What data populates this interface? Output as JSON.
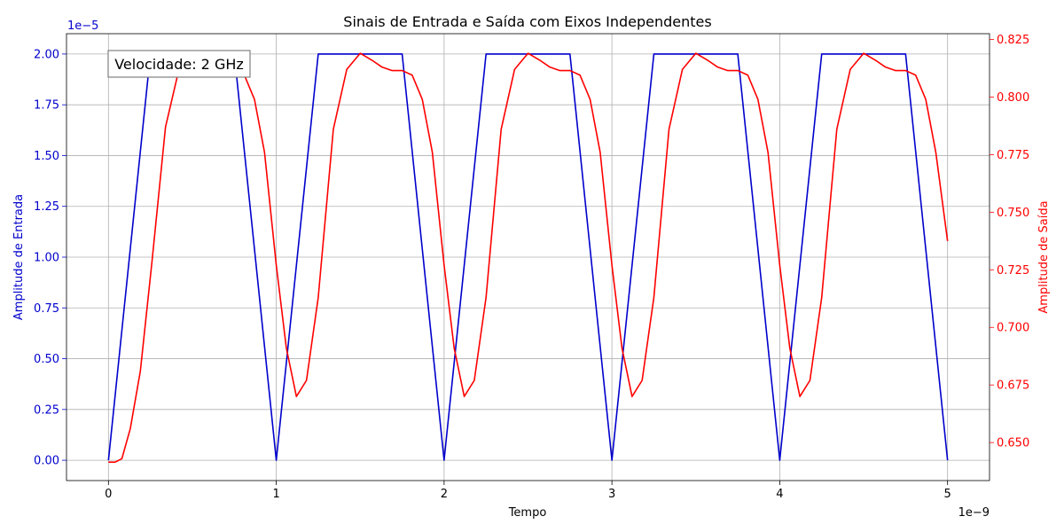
{
  "chart_data": {
    "type": "line",
    "title": "Sinais de Entrada e Saída com Eixos Independentes",
    "xlabel": "Tempo",
    "x_exponent": "1e−9",
    "x_tick_labels": [
      "0",
      "1",
      "2",
      "3",
      "4",
      "5"
    ],
    "xlim": [
      -0.25,
      5.25
    ],
    "grid": true,
    "annotation": "Velocidade: 2 GHz",
    "left_axis": {
      "label": "Amplitude de Entrada",
      "exponent": "1e−5",
      "color": "#0000cc",
      "ylim": [
        -0.1,
        2.1
      ],
      "ticks": [
        0.0,
        0.25,
        0.5,
        0.75,
        1.0,
        1.25,
        1.5,
        1.75,
        2.0
      ],
      "tick_labels": [
        "0.00",
        "0.25",
        "0.50",
        "0.75",
        "1.00",
        "1.25",
        "1.50",
        "1.75",
        "2.00"
      ]
    },
    "right_axis": {
      "label": "Amplitude de Saída",
      "color": "#ff0000",
      "ylim": [
        0.6335,
        0.8275
      ],
      "ticks": [
        0.65,
        0.675,
        0.7,
        0.725,
        0.75,
        0.775,
        0.8,
        0.825
      ],
      "tick_labels": [
        "0.650",
        "0.675",
        "0.700",
        "0.725",
        "0.750",
        "0.775",
        "0.800",
        "0.825"
      ]
    },
    "series": [
      {
        "axis": "left",
        "color": "#0000cc",
        "x": [
          0,
          0.25,
          0.75,
          1.0,
          1.25,
          1.75,
          2.0,
          2.25,
          2.75,
          3.0,
          3.25,
          3.75,
          4.0,
          4.25,
          4.75,
          5.0
        ],
        "y": [
          0,
          2.0,
          2.0,
          0,
          2.0,
          2.0,
          0,
          2.0,
          2.0,
          0,
          2.0,
          2.0,
          0,
          2.0,
          2.0,
          0
        ]
      },
      {
        "axis": "right",
        "color": "#ff0000",
        "x": [
          0,
          0.04,
          0.08,
          0.13,
          0.19,
          0.26,
          0.34,
          0.42,
          0.5,
          0.57,
          0.63,
          0.69,
          0.75,
          0.81,
          0.87,
          0.93,
          1.0,
          1.06,
          1.12,
          1.18,
          1.25,
          1.34,
          1.42,
          1.5,
          1.57,
          1.63,
          1.69,
          1.75,
          1.81,
          1.87,
          1.93,
          2.0,
          2.06,
          2.12,
          2.18,
          2.25,
          2.34,
          2.42,
          2.5,
          2.57,
          2.63,
          2.69,
          2.75,
          2.81,
          2.87,
          2.93,
          3.0,
          3.06,
          3.12,
          3.18,
          3.25,
          3.34,
          3.42,
          3.5,
          3.57,
          3.63,
          3.69,
          3.75,
          3.81,
          3.87,
          3.93,
          4.0,
          4.06,
          4.12,
          4.18,
          4.25,
          4.34,
          4.42,
          4.5,
          4.57,
          4.63,
          4.69,
          4.75,
          4.81,
          4.87,
          4.93,
          5.0
        ],
        "y": [
          0.6415,
          0.6415,
          0.643,
          0.656,
          0.681,
          0.729,
          0.787,
          0.812,
          0.819,
          0.816,
          0.813,
          0.8115,
          0.8115,
          0.8095,
          0.799,
          0.776,
          0.727,
          0.691,
          0.67,
          0.677,
          0.713,
          0.786,
          0.812,
          0.819,
          0.816,
          0.813,
          0.8115,
          0.8115,
          0.8095,
          0.799,
          0.776,
          0.727,
          0.691,
          0.67,
          0.677,
          0.713,
          0.786,
          0.812,
          0.819,
          0.816,
          0.813,
          0.8115,
          0.8115,
          0.8095,
          0.799,
          0.776,
          0.727,
          0.691,
          0.67,
          0.677,
          0.713,
          0.786,
          0.812,
          0.819,
          0.816,
          0.813,
          0.8115,
          0.8115,
          0.8095,
          0.799,
          0.776,
          0.727,
          0.691,
          0.67,
          0.677,
          0.713,
          0.786,
          0.812,
          0.819,
          0.816,
          0.813,
          0.8115,
          0.8115,
          0.8095,
          0.799,
          0.776,
          0.7375
        ]
      }
    ]
  }
}
